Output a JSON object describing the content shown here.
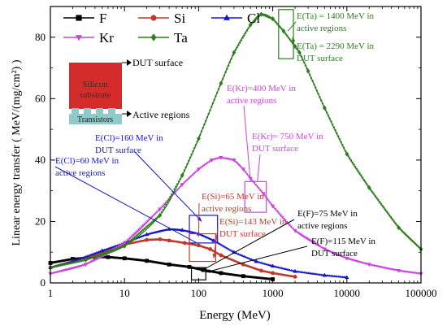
{
  "chart_data": {
    "type": "line",
    "xscale": "log",
    "xlim": [
      1,
      100000
    ],
    "ylim": [
      0,
      90
    ],
    "xlabel": "Energy (MeV)",
    "ylabel": "Linear energy transfer ( MeV/(mg/cm²) )",
    "xticks": [
      "1",
      "10",
      "100",
      "1000",
      "10000",
      "100000"
    ],
    "yticks": [
      "0",
      "20",
      "40",
      "60",
      "80"
    ],
    "legend": {
      "placement": "top-left",
      "columns": 3
    },
    "series": [
      {
        "name": "F",
        "color": "#000000",
        "marker": "square",
        "x": [
          1,
          2,
          4,
          6,
          10,
          20,
          40,
          75,
          115,
          200,
          400,
          1000
        ],
        "y": [
          6.5,
          7.8,
          8.4,
          8.4,
          8.0,
          7.2,
          6.0,
          5.2,
          4.2,
          3.2,
          2.2,
          1.2
        ]
      },
      {
        "name": "Si",
        "color": "#c0392b",
        "marker": "circle",
        "x": [
          1,
          2,
          5,
          10,
          20,
          30,
          40,
          65,
          100,
          143,
          200,
          400,
          700,
          1000,
          2000
        ],
        "y": [
          5.0,
          7.0,
          10.0,
          12.5,
          14.0,
          14.2,
          13.8,
          13.0,
          12.2,
          11.0,
          9.0,
          6.0,
          4.0,
          3.2,
          2.0
        ]
      },
      {
        "name": "Cl",
        "color": "#1515cc",
        "marker": "triangle-up",
        "x": [
          1,
          2,
          5,
          10,
          20,
          40,
          60,
          100,
          160,
          300,
          600,
          1000,
          2000,
          5000,
          10000
        ],
        "y": [
          5.0,
          7.0,
          10.5,
          13.0,
          15.8,
          17.5,
          17.2,
          16.0,
          13.8,
          10.0,
          7.0,
          5.5,
          3.8,
          2.5,
          1.8
        ]
      },
      {
        "name": "Kr",
        "color": "#cc44dd",
        "marker": "triangle-down",
        "x": [
          1,
          3,
          10,
          30,
          60,
          100,
          150,
          200,
          300,
          400,
          500,
          750,
          1000,
          2000,
          5000,
          10000,
          20000,
          50000,
          100000
        ],
        "y": [
          3.0,
          6.0,
          13.0,
          24.0,
          32.0,
          37.0,
          40.0,
          40.8,
          40.0,
          37.0,
          34.0,
          29.0,
          25.0,
          17.0,
          11.0,
          8.0,
          6.0,
          4.0,
          3.0
        ]
      },
      {
        "name": "Ta",
        "color": "#2e7d1e",
        "marker": "diamond",
        "x": [
          1,
          3,
          10,
          30,
          60,
          100,
          200,
          300,
          500,
          700,
          1000,
          1400,
          2000,
          2290,
          3000,
          5000,
          10000,
          20000,
          50000,
          100000
        ],
        "y": [
          5.0,
          7.5,
          12.0,
          22.0,
          35.0,
          47.0,
          65.0,
          75.0,
          84.0,
          87.5,
          86.0,
          82.0,
          77.0,
          75.0,
          69.0,
          57.0,
          42.0,
          31.0,
          18.0,
          11.0
        ]
      }
    ],
    "annotations": [
      {
        "id": "ta1",
        "text": [
          "E(Ta) = 1400 MeV in",
          "active regions"
        ],
        "color": "#2e7d1e"
      },
      {
        "id": "ta2",
        "text": [
          "E(Ta) = 2290 MeV in",
          "DUT surface"
        ],
        "color": "#2e7d1e"
      },
      {
        "id": "kr1",
        "text": [
          "E(Kr)=400 MeV in",
          "active regions"
        ],
        "color": "#cc44dd"
      },
      {
        "id": "kr2",
        "text": [
          "E(Kr)= 750 MeV in",
          "DUT surface"
        ],
        "color": "#cc44dd"
      },
      {
        "id": "cl1",
        "text": [
          "E(Cl)=160 MeV in",
          "DUT surface"
        ],
        "color": "#1515cc"
      },
      {
        "id": "cl2",
        "text": [
          "E(Cl)=60 MeV in",
          "active regions"
        ],
        "color": "#1515cc"
      },
      {
        "id": "si1",
        "text": [
          "E(Si)=65 MeV in",
          "active regions"
        ],
        "color": "#c0392b"
      },
      {
        "id": "si2",
        "text": [
          "E(Si)=143 MeV in",
          "DUT surface"
        ],
        "color": "#c0392b"
      },
      {
        "id": "f1",
        "text": [
          "E(F)=75 MeV in",
          "active regions"
        ],
        "color": "#000000"
      },
      {
        "id": "f2",
        "text": [
          "E(F)=115 MeV in",
          "DUT surface"
        ],
        "color": "#000000"
      }
    ],
    "inset": {
      "substrate_label": [
        "Silicon",
        "substrate"
      ],
      "transistor_label": "Transistors",
      "surface_label": "DUT surface",
      "active_label": "Active regions",
      "substrate_color": "#d42b2b",
      "transistor_color": "#8fc9c9"
    }
  }
}
